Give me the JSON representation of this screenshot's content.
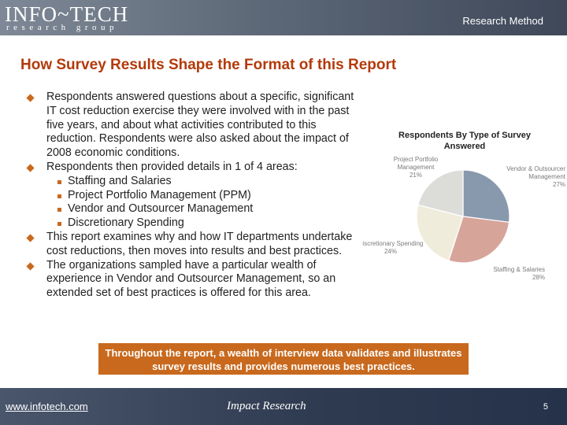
{
  "header": {
    "logo_main": "INFO~TECH",
    "logo_sub": "research group",
    "section_label": "Research Method"
  },
  "title": "How Survey Results Shape the Format of this Report",
  "bullets": [
    "Respondents answered questions about a specific, significant IT cost reduction exercise they were involved with in the past five years, and about what activities contributed to this reduction. Respondents were also asked about the impact of 2008 economic conditions.",
    "Respondents then provided details in 1 of 4 areas:",
    "This report examines why and how IT departments undertake cost reductions, then moves into results and best practices.",
    "The organizations sampled have a particular wealth of experience in Vendor and Outsourcer Management, so an extended set of best practices is offered for this area."
  ],
  "subbullets": [
    "Staffing and Salaries",
    "Project Portfolio Management (PPM)",
    "Vendor and Outsourcer Management",
    "Discretionary Spending"
  ],
  "chart_data": {
    "type": "pie",
    "title": "Respondents By Type of Survey Answered",
    "slices": [
      {
        "label_line1": "Vendor & Outsourcer",
        "label_line2": "Management",
        "percent_label": "27%",
        "value": 27,
        "color": "#8899ad"
      },
      {
        "label_line1": "Staffing & Salaries",
        "label_line2": "",
        "percent_label": "28%",
        "value": 28,
        "color": "#d7a49a"
      },
      {
        "label_line1": "Discretionary Spending",
        "label_line2": "",
        "percent_label": "24%",
        "value": 24,
        "color": "#f0ecdb"
      },
      {
        "label_line1": "Project Portfolio",
        "label_line2": "Management",
        "percent_label": "21%",
        "value": 21,
        "color": "#dcdcd8"
      }
    ]
  },
  "callout": "Throughout the report, a wealth of interview data validates and illustrates survey results and provides numerous best practices.",
  "footer": {
    "link": "www.infotech.com",
    "center": "Impact Research",
    "page_number": "5"
  },
  "colors": {
    "accent": "#c8691e",
    "title": "#b33a0a",
    "header_bg": "#5e6978",
    "footer_bg": "#2f3b50"
  }
}
